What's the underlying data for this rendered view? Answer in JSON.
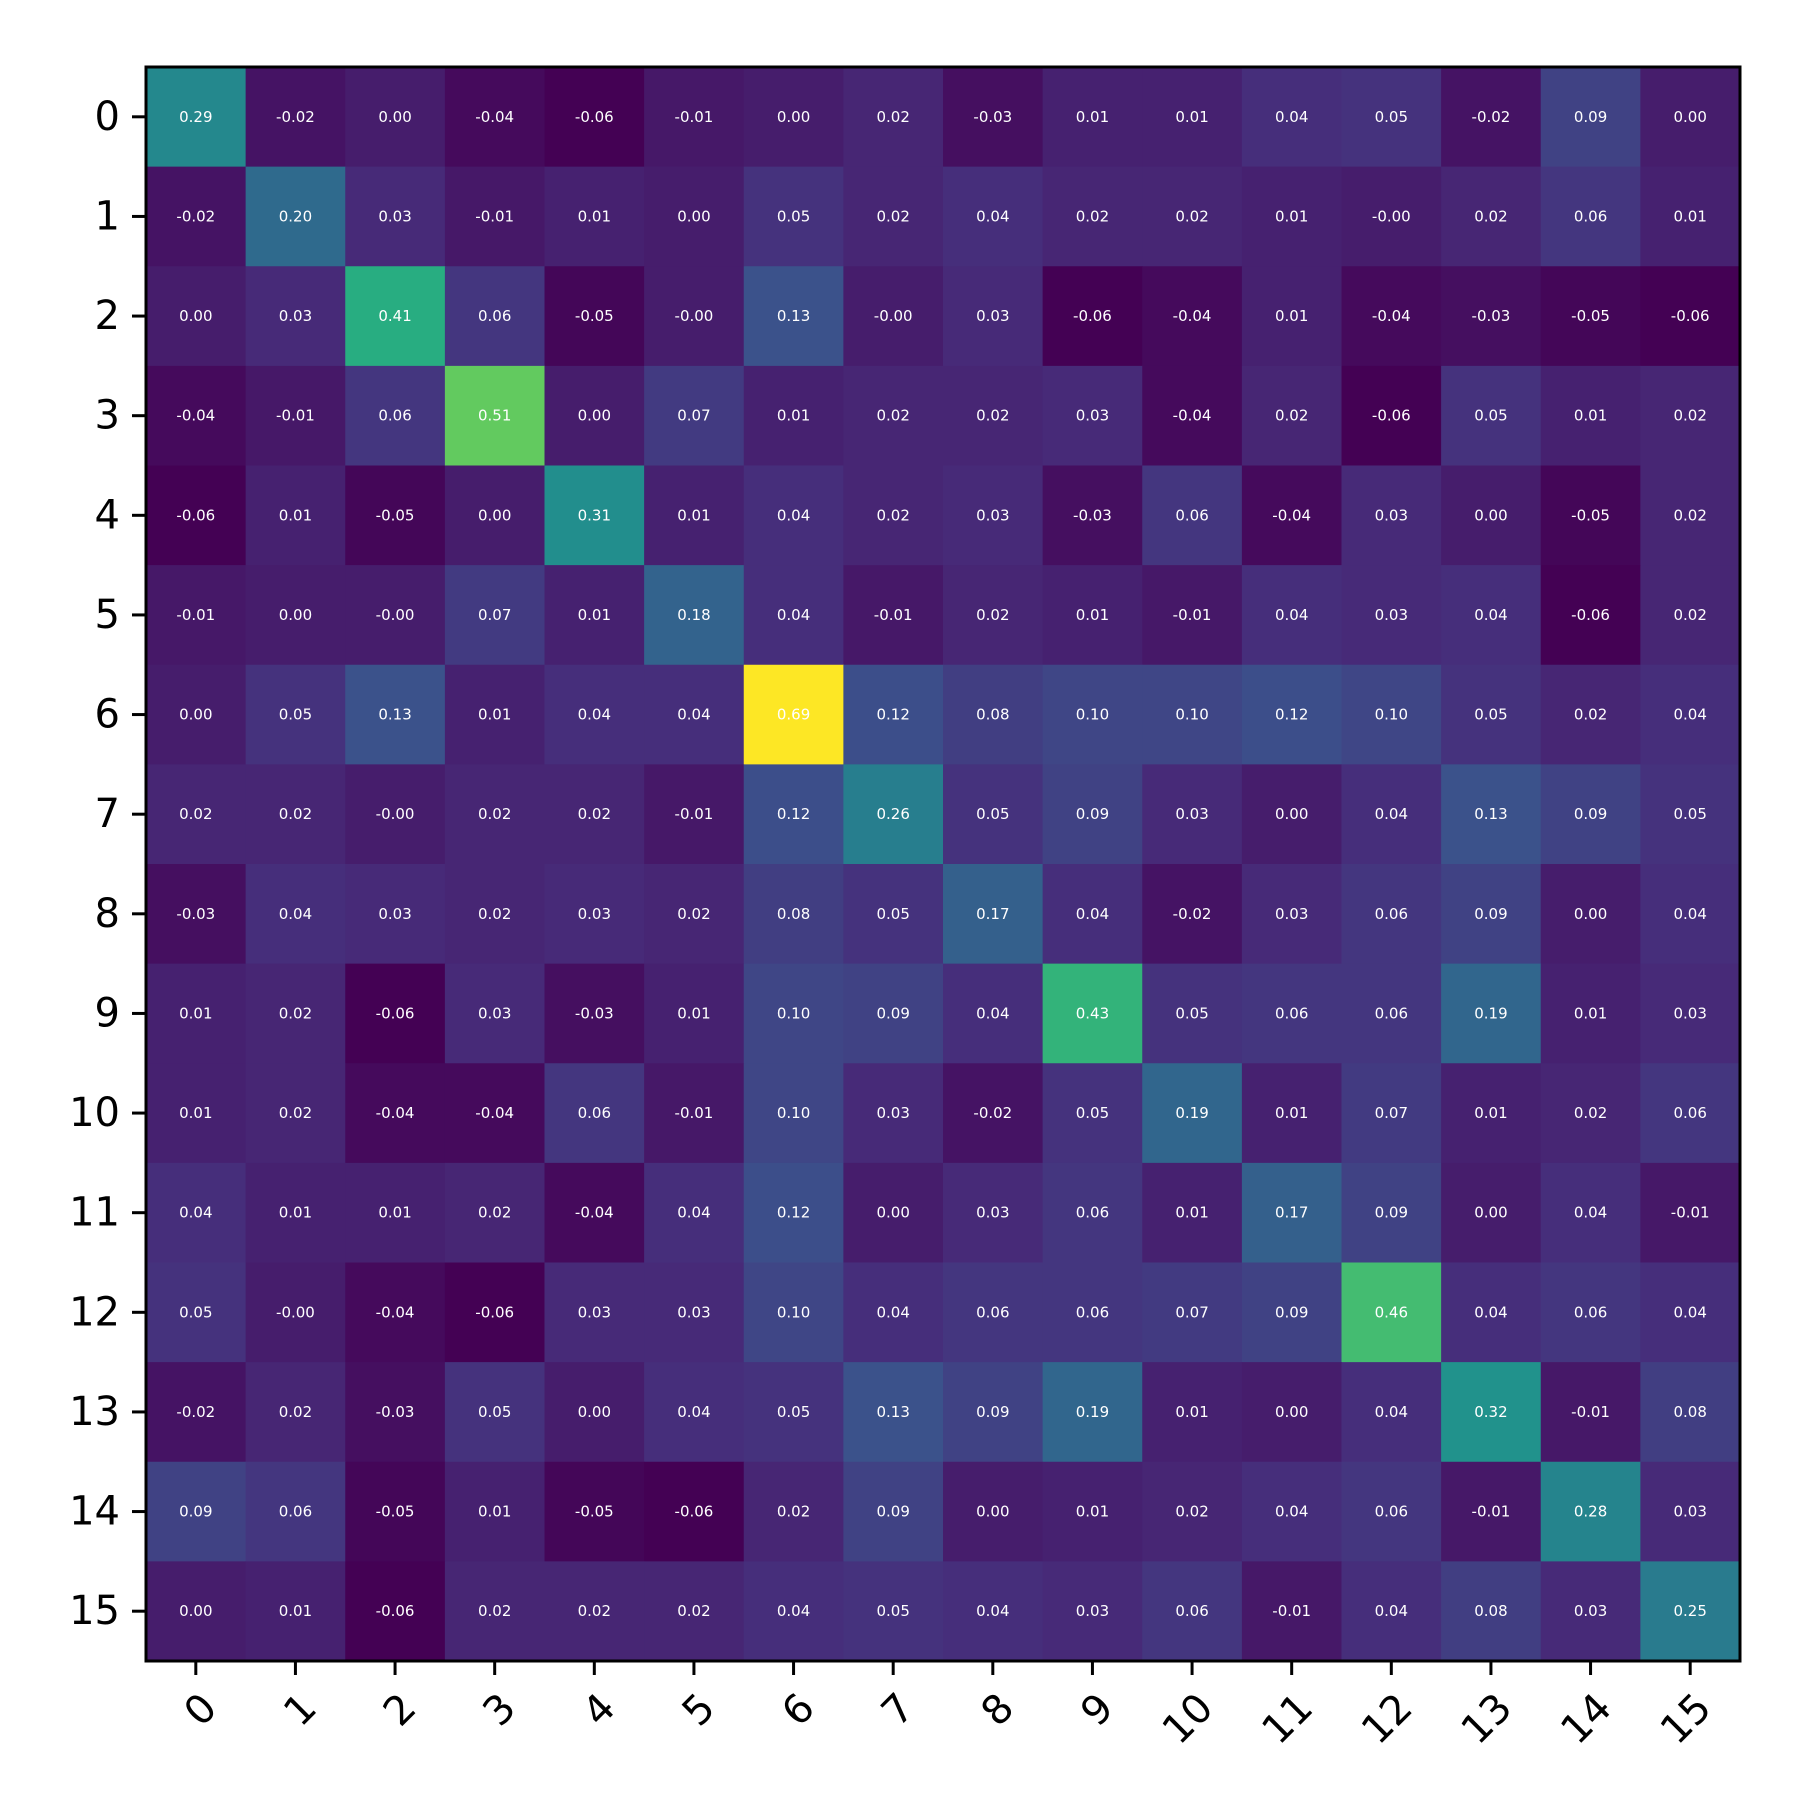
{
  "chart_data": {
    "type": "heatmap",
    "title": "",
    "xlabel": "",
    "ylabel": "",
    "colormap": "viridis",
    "grid": false,
    "x_labels": [
      "0",
      "1",
      "2",
      "3",
      "4",
      "5",
      "6",
      "7",
      "8",
      "9",
      "10",
      "11",
      "12",
      "13",
      "14",
      "15"
    ],
    "y_labels": [
      "0",
      "1",
      "2",
      "3",
      "4",
      "5",
      "6",
      "7",
      "8",
      "9",
      "10",
      "11",
      "12",
      "13",
      "14",
      "15"
    ],
    "value_format": "2 decimals",
    "value_labels": [
      [
        "0.29",
        "-0.02",
        "0.00",
        "-0.04",
        "-0.06",
        "-0.01",
        "0.00",
        "0.02",
        "-0.03",
        "0.01",
        "0.01",
        "0.04",
        "0.05",
        "-0.02",
        "0.09",
        "0.00"
      ],
      [
        "-0.02",
        "0.20",
        "0.03",
        "-0.01",
        "0.01",
        "0.00",
        "0.05",
        "0.02",
        "0.04",
        "0.02",
        "0.02",
        "0.01",
        "-0.00",
        "0.02",
        "0.06",
        "0.01"
      ],
      [
        "0.00",
        "0.03",
        "0.41",
        "0.06",
        "-0.05",
        "-0.00",
        "0.13",
        "-0.00",
        "0.03",
        "-0.06",
        "-0.04",
        "0.01",
        "-0.04",
        "-0.03",
        "-0.05",
        "-0.06"
      ],
      [
        "-0.04",
        "-0.01",
        "0.06",
        "0.51",
        "0.00",
        "0.07",
        "0.01",
        "0.02",
        "0.02",
        "0.03",
        "-0.04",
        "0.02",
        "-0.06",
        "0.05",
        "0.01",
        "0.02"
      ],
      [
        "-0.06",
        "0.01",
        "-0.05",
        "0.00",
        "0.31",
        "0.01",
        "0.04",
        "0.02",
        "0.03",
        "-0.03",
        "0.06",
        "-0.04",
        "0.03",
        "0.00",
        "-0.05",
        "0.02"
      ],
      [
        "-0.01",
        "0.00",
        "-0.00",
        "0.07",
        "0.01",
        "0.18",
        "0.04",
        "-0.01",
        "0.02",
        "0.01",
        "-0.01",
        "0.04",
        "0.03",
        "0.04",
        "-0.06",
        "0.02"
      ],
      [
        "0.00",
        "0.05",
        "0.13",
        "0.01",
        "0.04",
        "0.04",
        "0.69",
        "0.12",
        "0.08",
        "0.10",
        "0.10",
        "0.12",
        "0.10",
        "0.05",
        "0.02",
        "0.04"
      ],
      [
        "0.02",
        "0.02",
        "-0.00",
        "0.02",
        "0.02",
        "-0.01",
        "0.12",
        "0.26",
        "0.05",
        "0.09",
        "0.03",
        "0.00",
        "0.04",
        "0.13",
        "0.09",
        "0.05"
      ],
      [
        "-0.03",
        "0.04",
        "0.03",
        "0.02",
        "0.03",
        "0.02",
        "0.08",
        "0.05",
        "0.17",
        "0.04",
        "-0.02",
        "0.03",
        "0.06",
        "0.09",
        "0.00",
        "0.04"
      ],
      [
        "0.01",
        "0.02",
        "-0.06",
        "0.03",
        "-0.03",
        "0.01",
        "0.10",
        "0.09",
        "0.04",
        "0.43",
        "0.05",
        "0.06",
        "0.06",
        "0.19",
        "0.01",
        "0.03"
      ],
      [
        "0.01",
        "0.02",
        "-0.04",
        "-0.04",
        "0.06",
        "-0.01",
        "0.10",
        "0.03",
        "-0.02",
        "0.05",
        "0.19",
        "0.01",
        "0.07",
        "0.01",
        "0.02",
        "0.06"
      ],
      [
        "0.04",
        "0.01",
        "0.01",
        "0.02",
        "-0.04",
        "0.04",
        "0.12",
        "0.00",
        "0.03",
        "0.06",
        "0.01",
        "0.17",
        "0.09",
        "0.00",
        "0.04",
        "-0.01"
      ],
      [
        "0.05",
        "-0.00",
        "-0.04",
        "-0.06",
        "0.03",
        "0.03",
        "0.10",
        "0.04",
        "0.06",
        "0.06",
        "0.07",
        "0.09",
        "0.46",
        "0.04",
        "0.06",
        "0.04"
      ],
      [
        "-0.02",
        "0.02",
        "-0.03",
        "0.05",
        "0.00",
        "0.04",
        "0.05",
        "0.13",
        "0.09",
        "0.19",
        "0.01",
        "0.00",
        "0.04",
        "0.32",
        "-0.01",
        "0.08"
      ],
      [
        "0.09",
        "0.06",
        "-0.05",
        "0.01",
        "-0.05",
        "-0.06",
        "0.02",
        "0.09",
        "0.00",
        "0.01",
        "0.02",
        "0.04",
        "0.06",
        "-0.01",
        "0.28",
        "0.03"
      ],
      [
        "0.00",
        "0.01",
        "-0.06",
        "0.02",
        "0.02",
        "0.02",
        "0.04",
        "0.05",
        "0.04",
        "0.03",
        "0.06",
        "-0.01",
        "0.04",
        "0.08",
        "0.03",
        "0.25"
      ]
    ]
  }
}
